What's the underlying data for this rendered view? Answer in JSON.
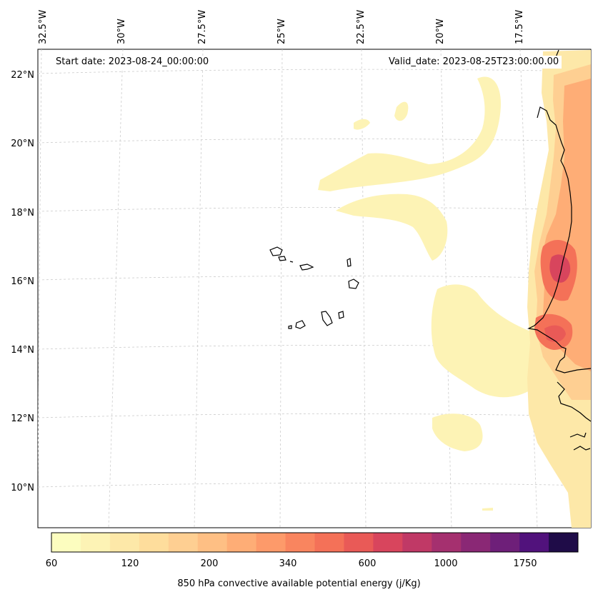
{
  "map": {
    "start_date": "Start date: 2023-08-24_00:00:00",
    "valid_date": "Valid_date: 2023-08-25T23:00:00.00",
    "longitude_labels": [
      "32.5°W",
      "30°W",
      "27.5°W",
      "25°W",
      "22.5°W",
      "20°W",
      "17.5°W"
    ],
    "latitude_labels": [
      "22°N",
      "20°N",
      "18°N",
      "16°N",
      "14°N",
      "12°N",
      "10°N"
    ]
  },
  "colorbar": {
    "title": "850 hPa convective available potential energy (j/Kg)",
    "tick_labels": [
      "60",
      "120",
      "200",
      "340",
      "600",
      "1000",
      "1750"
    ],
    "colors": [
      "#fcfdbf",
      "#fdf3b5",
      "#fde8a8",
      "#fedd9c",
      "#fecf92",
      "#febf84",
      "#fead76",
      "#fd9a6a",
      "#f9855f",
      "#f47158",
      "#e95a57",
      "#d8455d",
      "#c03966",
      "#a5306f",
      "#8a2875",
      "#6e1f79",
      "#51127c",
      "#1f0c48"
    ]
  },
  "legend_swatches": {
    "yellow_lightest": "#fcfdbf",
    "orange_mid": "#fdb27b",
    "red_peak": "#e0505e"
  }
}
